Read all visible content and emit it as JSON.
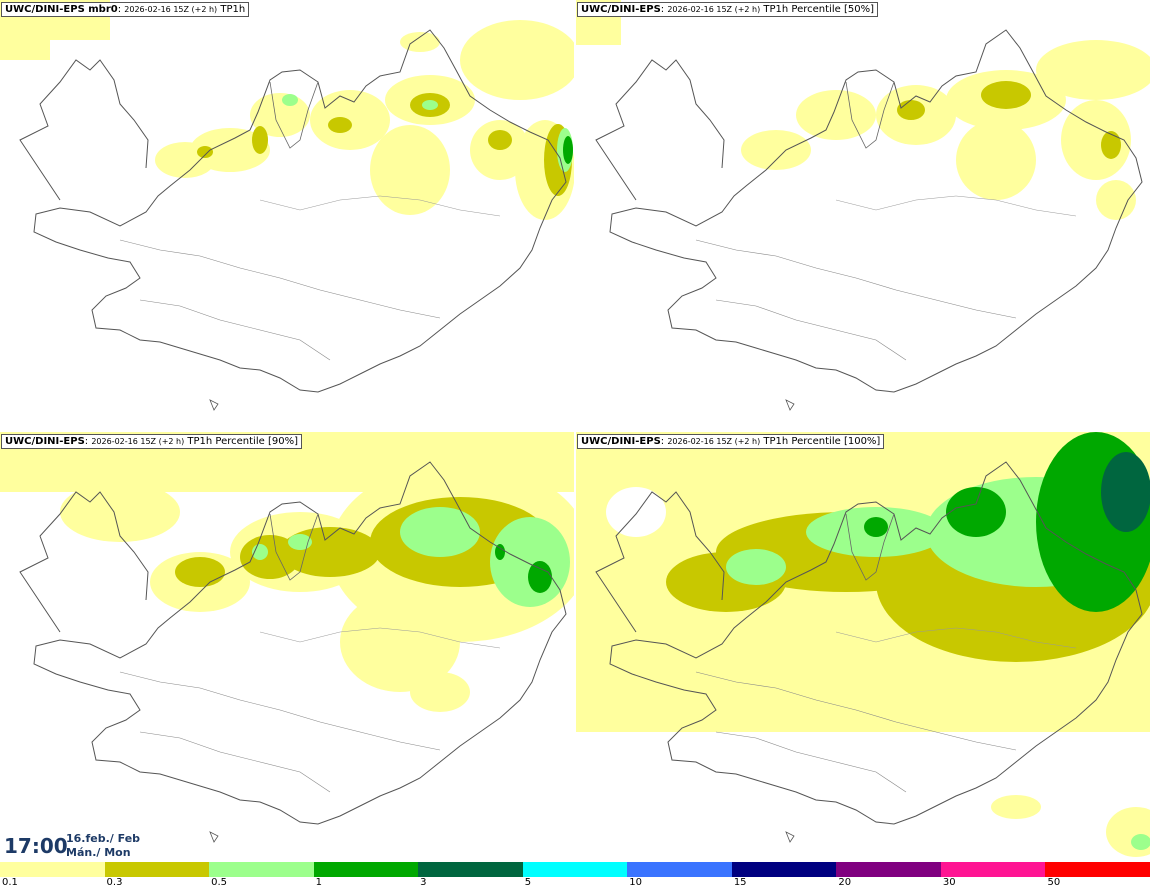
{
  "panels": [
    {
      "model": "UWC/DINI-EPS mbr0",
      "run": "2026-02-16 15Z (+2 h)",
      "field": "TP1h",
      "level": "low"
    },
    {
      "model": "UWC/DINI-EPS",
      "run": "2026-02-16 15Z (+2 h)",
      "field": "TP1h Percentile [50%]",
      "level": "low"
    },
    {
      "model": "UWC/DINI-EPS",
      "run": "2026-02-16 15Z (+2 h)",
      "field": "TP1h Percentile [90%]",
      "level": "mid"
    },
    {
      "model": "UWC/DINI-EPS",
      "run": "2026-02-16 15Z (+2 h)",
      "field": "TP1h Percentile [100%]",
      "level": "high"
    }
  ],
  "time": {
    "clock": "17:00",
    "date_line1": "16.feb./ Feb",
    "date_line2": "Mán./ Mon"
  },
  "colorbar": {
    "colors": [
      "#ffff9e",
      "#c8c800",
      "#9cff8c",
      "#00a800",
      "#00663f",
      "#00ffff",
      "#3a74ff",
      "#000080",
      "#800080",
      "#ff1493",
      "#ff0000"
    ],
    "labels": [
      "0.1",
      "0.3",
      "0.5",
      "1",
      "3",
      "5",
      "10",
      "15",
      "20",
      "30",
      "50"
    ]
  }
}
